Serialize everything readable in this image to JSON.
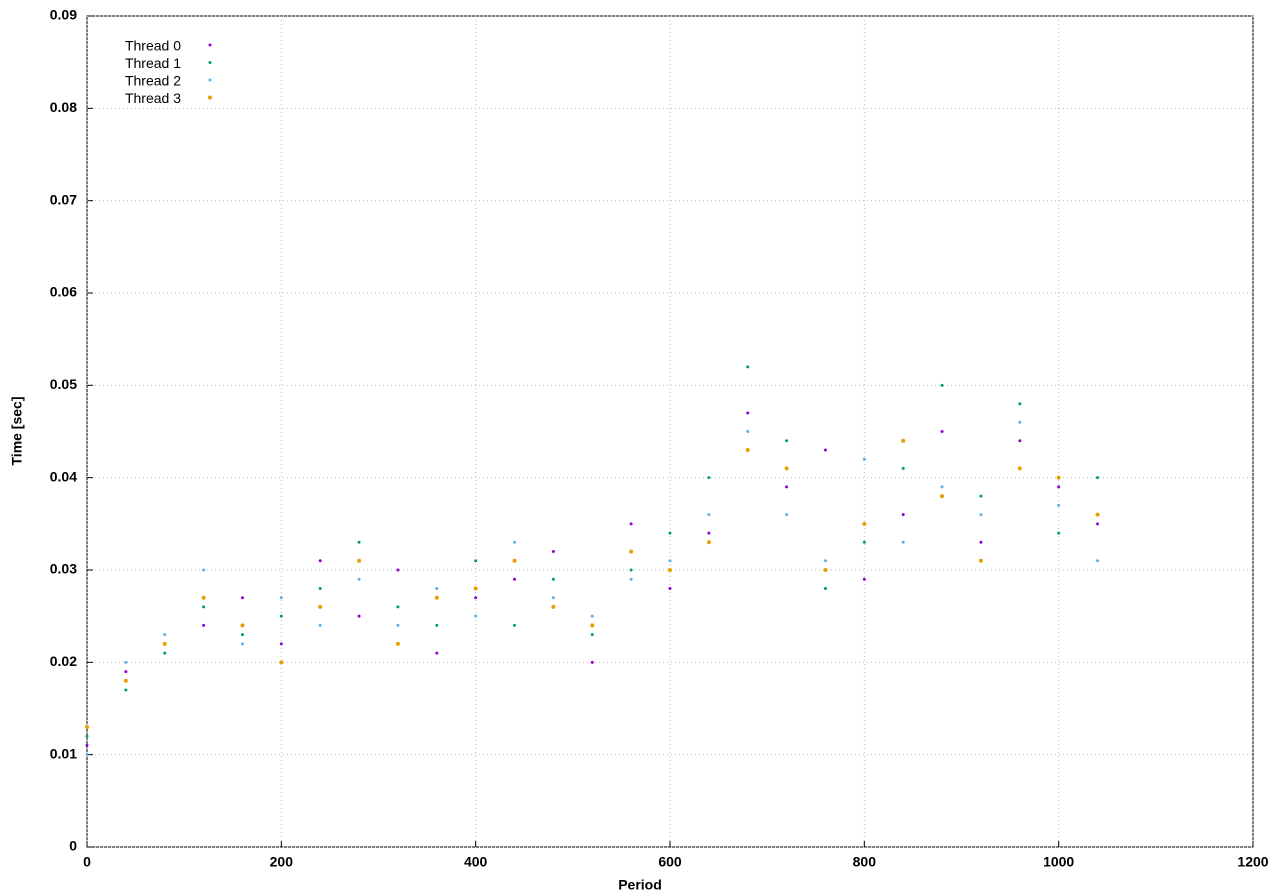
{
  "chart_data": {
    "type": "scatter",
    "xlabel": "Period",
    "ylabel": "Time [sec]",
    "x": [
      0,
      40,
      80,
      120,
      160,
      200,
      240,
      280,
      320,
      360,
      400,
      440,
      480,
      520,
      560,
      600,
      640,
      680,
      720,
      760,
      800,
      840,
      880,
      920,
      960,
      1000,
      1040
    ],
    "series": [
      {
        "name": "Thread 0",
        "color": "#9400d3",
        "values": [
          0.011,
          0.019,
          0.022,
          0.024,
          0.027,
          0.022,
          0.031,
          0.025,
          0.03,
          0.021,
          0.027,
          0.029,
          0.032,
          0.02,
          0.035,
          0.028,
          0.034,
          0.047,
          0.039,
          0.043,
          0.029,
          0.036,
          0.045,
          0.033,
          0.044,
          0.039,
          0.035
        ]
      },
      {
        "name": "Thread 1",
        "color": "#009e73",
        "values": [
          0.012,
          0.017,
          0.021,
          0.026,
          0.023,
          0.025,
          0.028,
          0.033,
          0.026,
          0.024,
          0.031,
          0.024,
          0.029,
          0.023,
          0.03,
          0.034,
          0.04,
          0.052,
          0.044,
          0.028,
          0.033,
          0.041,
          0.05,
          0.038,
          0.048,
          0.034,
          0.04
        ]
      },
      {
        "name": "Thread 2",
        "color": "#56b4e9",
        "values": [
          0.01,
          0.02,
          0.023,
          0.03,
          0.022,
          0.027,
          0.024,
          0.029,
          0.024,
          0.028,
          0.025,
          0.033,
          0.027,
          0.025,
          0.029,
          0.031,
          0.036,
          0.045,
          0.036,
          0.031,
          0.042,
          0.033,
          0.039,
          0.036,
          0.046,
          0.037,
          0.031
        ]
      },
      {
        "name": "Thread 3",
        "color": "#e69f00",
        "values": [
          0.013,
          0.018,
          0.022,
          0.027,
          0.024,
          0.02,
          0.026,
          0.031,
          0.022,
          0.027,
          0.028,
          0.031,
          0.026,
          0.024,
          0.032,
          0.03,
          0.033,
          0.043,
          0.041,
          0.03,
          0.035,
          0.044,
          0.038,
          0.031,
          0.041,
          0.04,
          0.036
        ]
      }
    ],
    "xlim": [
      0,
      1200
    ],
    "xticks": [
      0,
      200,
      400,
      600,
      800,
      1000,
      1200
    ],
    "ylim": [
      0,
      0.09
    ],
    "yticks": [
      0,
      0.01,
      0.02,
      0.03,
      0.04,
      0.05,
      0.06,
      0.07,
      0.08,
      0.09
    ],
    "grid": true,
    "legend": "top-left"
  }
}
